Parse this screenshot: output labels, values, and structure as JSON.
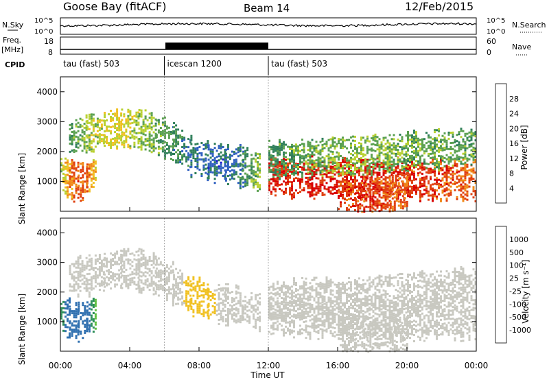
{
  "header": {
    "site": "Goose Bay (fitACF)",
    "beam": "Beam 14",
    "date": "12/Feb/2015"
  },
  "panels": {
    "nsky_label": "N.Sky",
    "nsky_ticks": [
      "10^5",
      "10^0"
    ],
    "nsearch_label": "N.Search",
    "nsearch_ticks": [
      "10^5",
      "10^0"
    ],
    "freq_label_1": "Freq.",
    "freq_label_2": "[MHz]",
    "freq_ticks": [
      "18",
      "8"
    ],
    "nave_label": "Nave",
    "nave_ticks": [
      "60",
      "0"
    ],
    "cpid_label": "CPID",
    "cpid_segments": [
      {
        "label": "tau (fast) 503",
        "start": 0,
        "end": 6
      },
      {
        "label": "icescan 1200",
        "start": 6,
        "end": 12
      },
      {
        "label": "tau (fast) 503",
        "start": 12,
        "end": 24
      }
    ]
  },
  "chart_data": [
    {
      "type": "heatmap",
      "title": "",
      "xlabel": "Time UT",
      "ylabel": "Slant Range [km]",
      "xlim": [
        0,
        24
      ],
      "ylim": [
        0,
        4500
      ],
      "x_ticks": [
        "00:00",
        "04:00",
        "08:00",
        "12:00",
        "16:00",
        "20:00",
        "00:00"
      ],
      "x_tick_values": [
        0,
        4,
        8,
        12,
        16,
        20,
        24
      ],
      "y_ticks": [
        1000,
        2000,
        3000,
        4000
      ],
      "colorbar": {
        "label": "Power [dB]",
        "tick_labels": [
          "4",
          "8",
          "12",
          "16",
          "20",
          "24",
          "28"
        ],
        "range": [
          0,
          30
        ],
        "colors": [
          "#1a1ad0",
          "#3060c0",
          "#2f7f5a",
          "#5aa050",
          "#b8d030",
          "#f0c020",
          "#f08818",
          "#e04010",
          "#d80000"
        ]
      },
      "bands": [
        {
          "name": "band_a",
          "points": [
            [
              0.0,
              1200,
              15
            ],
            [
              0.5,
              1100,
              22
            ],
            [
              1.0,
              1050,
              24
            ],
            [
              1.5,
              1100,
              23
            ],
            [
              2.0,
              1300,
              18
            ]
          ]
        },
        {
          "name": "band_b",
          "points": [
            [
              0.5,
              2500,
              10
            ],
            [
              1.5,
              2600,
              14
            ],
            [
              2.5,
              2700,
              16
            ],
            [
              3.5,
              2800,
              17
            ],
            [
              4.5,
              2750,
              14
            ],
            [
              5.5,
              2600,
              12
            ],
            [
              6.5,
              2300,
              9
            ],
            [
              7.5,
              1900,
              7
            ],
            [
              8.5,
              1700,
              6
            ],
            [
              9.5,
              1600,
              6
            ],
            [
              10.5,
              1500,
              8
            ],
            [
              11.5,
              1300,
              14
            ]
          ]
        },
        {
          "name": "band_c",
          "points": [
            [
              12.0,
              1200,
              26
            ],
            [
              14.0,
              1150,
              27
            ],
            [
              16.0,
              1100,
              28
            ],
            [
              18.0,
              1100,
              27
            ],
            [
              20.0,
              1100,
              26
            ],
            [
              22.0,
              1050,
              25
            ],
            [
              24.0,
              1050,
              23
            ]
          ]
        },
        {
          "name": "band_d",
          "points": [
            [
              12.0,
              1700,
              10
            ],
            [
              14.0,
              1800,
              12
            ],
            [
              16.0,
              1850,
              13
            ],
            [
              18.0,
              1900,
              13
            ],
            [
              20.0,
              2000,
              12
            ],
            [
              22.0,
              2100,
              12
            ],
            [
              24.0,
              2200,
              11
            ]
          ]
        },
        {
          "name": "band_e",
          "points": [
            [
              16.0,
              700,
              24
            ],
            [
              17.0,
              600,
              26
            ],
            [
              18.0,
              550,
              25
            ],
            [
              19.0,
              550,
              24
            ],
            [
              20.0,
              600,
              23
            ]
          ]
        }
      ]
    },
    {
      "type": "heatmap",
      "title": "",
      "xlabel": "Time UT",
      "ylabel": "Slant Range [km]",
      "xlim": [
        0,
        24
      ],
      "ylim": [
        0,
        4500
      ],
      "x_ticks": [
        "00:00",
        "04:00",
        "08:00",
        "12:00",
        "16:00",
        "20:00",
        "00:00"
      ],
      "x_tick_values": [
        0,
        4,
        8,
        12,
        16,
        20,
        24
      ],
      "y_ticks": [
        1000,
        2000,
        3000,
        4000
      ],
      "colorbar": {
        "label": "Velocity [m s⁻¹]",
        "tick_labels": [
          "1000",
          "500",
          "100",
          "25",
          "-25",
          "-100",
          "-500",
          "-1000"
        ],
        "colors": [
          "#2030c0",
          "#3070b0",
          "#2f8f5a",
          "#60c040",
          "#c8c8c0",
          "#f0c020",
          "#f08818",
          "#e04010",
          "#d80000"
        ]
      },
      "bands": [
        {
          "name": "band_a",
          "points": [
            [
              0.0,
              1200,
              300
            ],
            [
              0.5,
              1100,
              600
            ],
            [
              1.0,
              1050,
              700
            ],
            [
              1.5,
              1100,
              500
            ],
            [
              2.0,
              1300,
              100
            ]
          ]
        },
        {
          "name": "band_b",
          "points": [
            [
              0.5,
              2500,
              0
            ],
            [
              1.5,
              2600,
              0
            ],
            [
              2.5,
              2700,
              0
            ],
            [
              3.5,
              2800,
              0
            ],
            [
              4.5,
              2750,
              0
            ],
            [
              5.5,
              2600,
              0
            ],
            [
              6.5,
              2300,
              0
            ],
            [
              7.5,
              1900,
              -50
            ],
            [
              8.5,
              1700,
              -50
            ],
            [
              9.5,
              1600,
              0
            ],
            [
              10.5,
              1500,
              0
            ],
            [
              11.5,
              1300,
              0
            ]
          ]
        },
        {
          "name": "band_c",
          "points": [
            [
              12.0,
              1200,
              0
            ],
            [
              14.0,
              1150,
              0
            ],
            [
              16.0,
              1100,
              0
            ],
            [
              18.0,
              1100,
              0
            ],
            [
              20.0,
              1100,
              0
            ],
            [
              22.0,
              1050,
              0
            ],
            [
              24.0,
              1050,
              0
            ]
          ]
        },
        {
          "name": "band_d",
          "points": [
            [
              12.0,
              1700,
              0
            ],
            [
              14.0,
              1800,
              0
            ],
            [
              16.0,
              1850,
              0
            ],
            [
              18.0,
              1900,
              0
            ],
            [
              20.0,
              2000,
              0
            ],
            [
              22.0,
              2100,
              0
            ],
            [
              24.0,
              2200,
              0
            ]
          ]
        },
        {
          "name": "band_e",
          "points": [
            [
              16.0,
              700,
              0
            ],
            [
              17.0,
              600,
              0
            ],
            [
              18.0,
              550,
              0
            ],
            [
              19.0,
              550,
              0
            ],
            [
              20.0,
              600,
              0
            ]
          ]
        }
      ]
    }
  ]
}
